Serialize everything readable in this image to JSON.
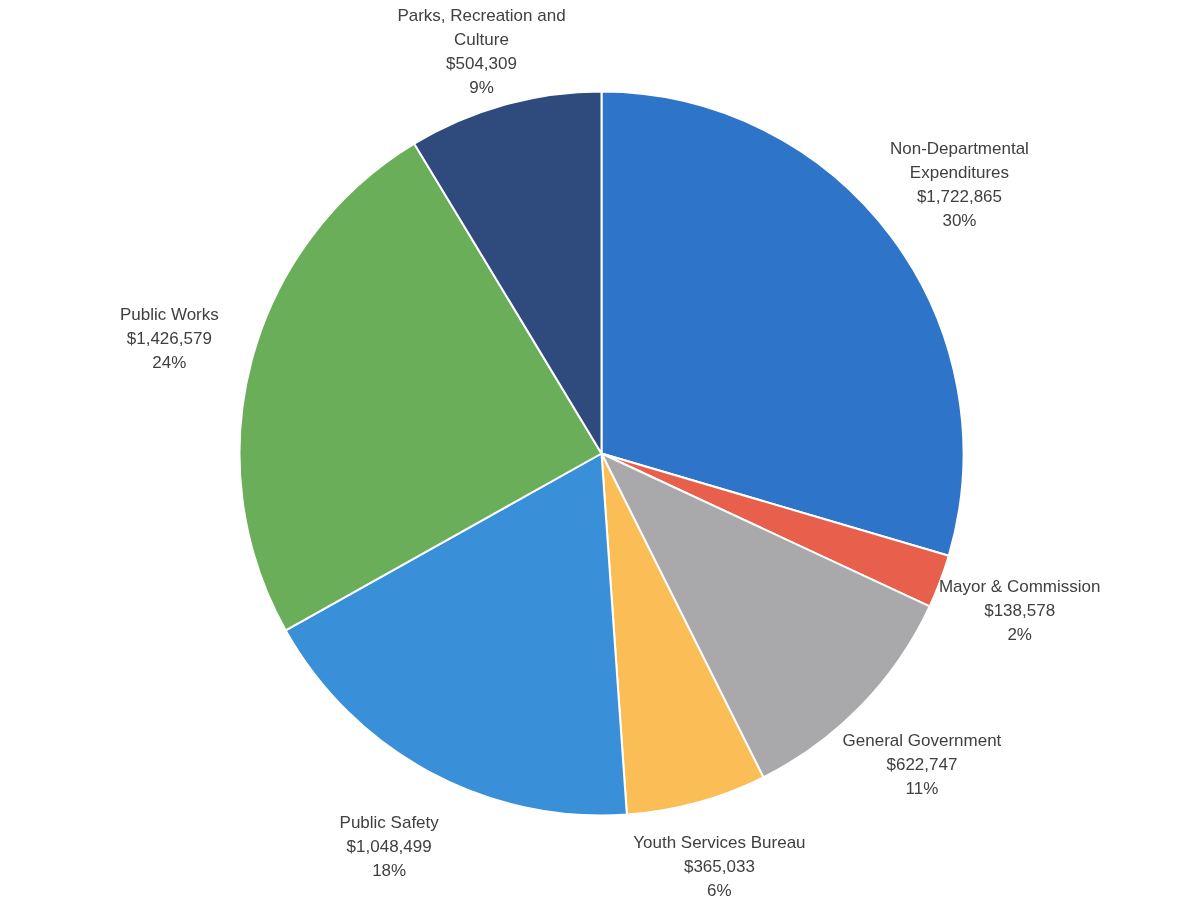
{
  "chart_data": {
    "type": "pie",
    "categories": [
      "Non-Departmental Expenditures",
      "Mayor & Commission",
      "General Government",
      "Youth Services Bureau",
      "Public Safety",
      "Public Works",
      "Parks, Recreation and Culture"
    ],
    "values": [
      1722865,
      138578,
      622747,
      365033,
      1048499,
      1426579,
      504309
    ],
    "colors": [
      "#2e74c8",
      "#e8604c",
      "#a9a9ac",
      "#fbbd55",
      "#3a8fd9",
      "#6aae5a",
      "#2f4a7c"
    ],
    "value_labels": [
      "$1,722,865\n30%",
      "$138,578\n2%",
      "$622,747\n11%",
      "$365,033\n6%",
      "$1,048,499\n18%",
      "$1,426,579\n24%",
      "$504,309\n9%"
    ],
    "legend": false
  }
}
